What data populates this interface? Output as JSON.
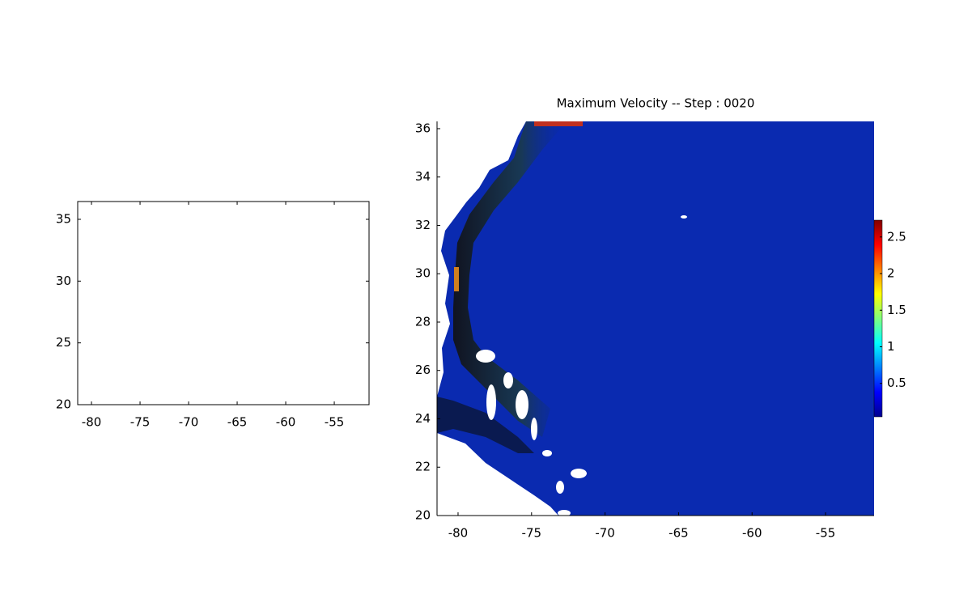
{
  "chart_data": [
    {
      "type": "axes",
      "xlim": [
        -81.42,
        -51.42
      ],
      "ylim": [
        20,
        36.44
      ],
      "xticks": [
        -80,
        -75,
        -70,
        -65,
        -60,
        -55
      ],
      "yticks": [
        20,
        25,
        30,
        35
      ]
    },
    {
      "type": "heatmap",
      "title": "Maximum Velocity -- Step : 0020",
      "xlim": [
        -81.43,
        -51.7
      ],
      "ylim": [
        20,
        36.3
      ],
      "xticks": [
        -80,
        -75,
        -70,
        -65,
        -60,
        -55
      ],
      "yticks": [
        20,
        22,
        24,
        26,
        28,
        30,
        32,
        34,
        36
      ],
      "colormap": "jet",
      "clim": [
        0.044,
        2.73
      ],
      "cticks": [
        0.5,
        1,
        1.5,
        2,
        2.5
      ]
    }
  ]
}
